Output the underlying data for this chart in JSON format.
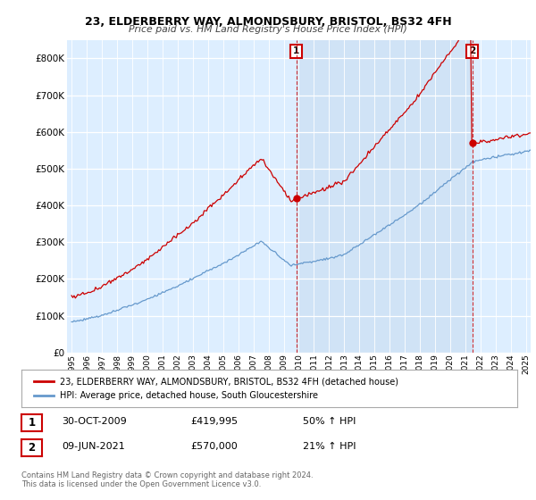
{
  "title1": "23, ELDERBERRY WAY, ALMONDSBURY, BRISTOL, BS32 4FH",
  "title2": "Price paid vs. HM Land Registry's House Price Index (HPI)",
  "ylabel_ticks": [
    "£0",
    "£100K",
    "£200K",
    "£300K",
    "£400K",
    "£500K",
    "£600K",
    "£700K",
    "£800K"
  ],
  "ytick_values": [
    0,
    100000,
    200000,
    300000,
    400000,
    500000,
    600000,
    700000,
    800000
  ],
  "ylim": [
    0,
    850000
  ],
  "xlim_start": 1994.7,
  "xlim_end": 2025.3,
  "sale1_year": 2009.83,
  "sale1_price": 419995,
  "sale2_year": 2021.44,
  "sale2_price": 570000,
  "legend_line1": "23, ELDERBERRY WAY, ALMONDSBURY, BRISTOL, BS32 4FH (detached house)",
  "legend_line2": "HPI: Average price, detached house, South Gloucestershire",
  "annotation1_date": "30-OCT-2009",
  "annotation1_price": "£419,995",
  "annotation1_hpi": "50% ↑ HPI",
  "annotation2_date": "09-JUN-2021",
  "annotation2_price": "£570,000",
  "annotation2_hpi": "21% ↑ HPI",
  "footer": "Contains HM Land Registry data © Crown copyright and database right 2024.\nThis data is licensed under the Open Government Licence v3.0.",
  "red_color": "#cc0000",
  "blue_color": "#6699cc",
  "shade_color": "#ddeeff",
  "bg_color": "#ddeeff",
  "plot_bg": "#ffffff"
}
